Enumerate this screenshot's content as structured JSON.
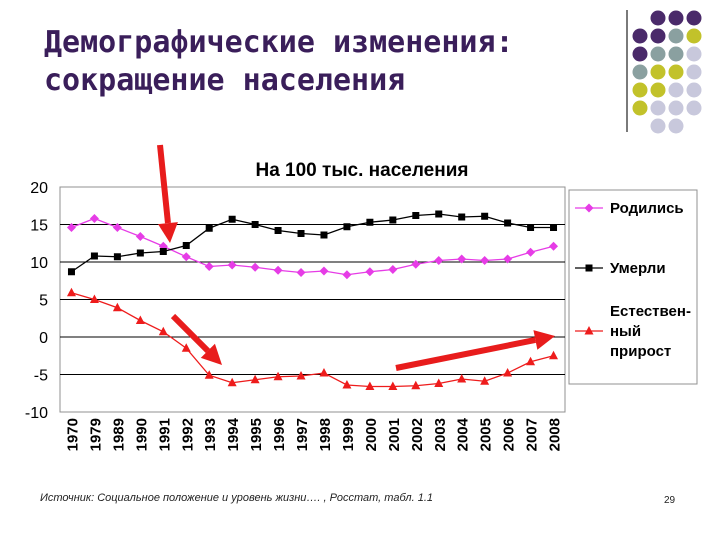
{
  "slide": {
    "title_lines": [
      "Демографические изменения:",
      "сокращение населения"
    ],
    "source": "Источник: Социальное положение и уровень жизни…. , Росстат, табл. 1.1",
    "page_number": "29"
  },
  "colors": {
    "title": "#3a1e5a",
    "born": "#e63ce6",
    "died": "#000000",
    "natural": "#ee1c1c",
    "arrow": "#e81c1c",
    "deco_purple": "#4a2a6a",
    "deco_teal": "#8aa0a0",
    "deco_olive": "#c2c22a",
    "deco_lavender": "#c8c8dc"
  },
  "chart_data": {
    "type": "line",
    "title": "На 100 тыс. населения",
    "categories": [
      "1970",
      "1979",
      "1989",
      "1990",
      "1991",
      "1992",
      "1993",
      "1994",
      "1995",
      "1996",
      "1997",
      "1998",
      "1999",
      "2000",
      "2001",
      "2002",
      "2003",
      "2004",
      "2005",
      "2006",
      "2007",
      "2008"
    ],
    "ylim": [
      -10,
      20
    ],
    "yticks": [
      "20",
      "15",
      "10",
      "5",
      "0",
      "-5",
      "-10"
    ],
    "grid": true,
    "legend_position": "right",
    "series": [
      {
        "name": "Родились",
        "marker": "diamond",
        "values": [
          14.6,
          15.8,
          14.6,
          13.4,
          12.1,
          10.7,
          9.4,
          9.6,
          9.3,
          8.9,
          8.6,
          8.8,
          8.3,
          8.7,
          9.0,
          9.7,
          10.2,
          10.4,
          10.2,
          10.4,
          11.3,
          12.1
        ]
      },
      {
        "name": "Умерли",
        "marker": "square",
        "values": [
          8.7,
          10.8,
          10.7,
          11.2,
          11.4,
          12.2,
          14.5,
          15.7,
          15.0,
          14.2,
          13.8,
          13.6,
          14.7,
          15.3,
          15.6,
          16.2,
          16.4,
          16.0,
          16.1,
          15.2,
          14.6,
          14.6
        ]
      },
      {
        "name": "Естественный прирост",
        "legend_lines": [
          "Естествен-",
          "ный",
          "прирост"
        ],
        "marker": "triangle",
        "values": [
          5.9,
          5.0,
          3.9,
          2.2,
          0.7,
          -1.5,
          -5.1,
          -6.1,
          -5.7,
          -5.3,
          -5.2,
          -4.8,
          -6.4,
          -6.6,
          -6.6,
          -6.5,
          -6.2,
          -5.6,
          -5.9,
          -4.8,
          -3.3,
          -2.5
        ]
      }
    ]
  }
}
